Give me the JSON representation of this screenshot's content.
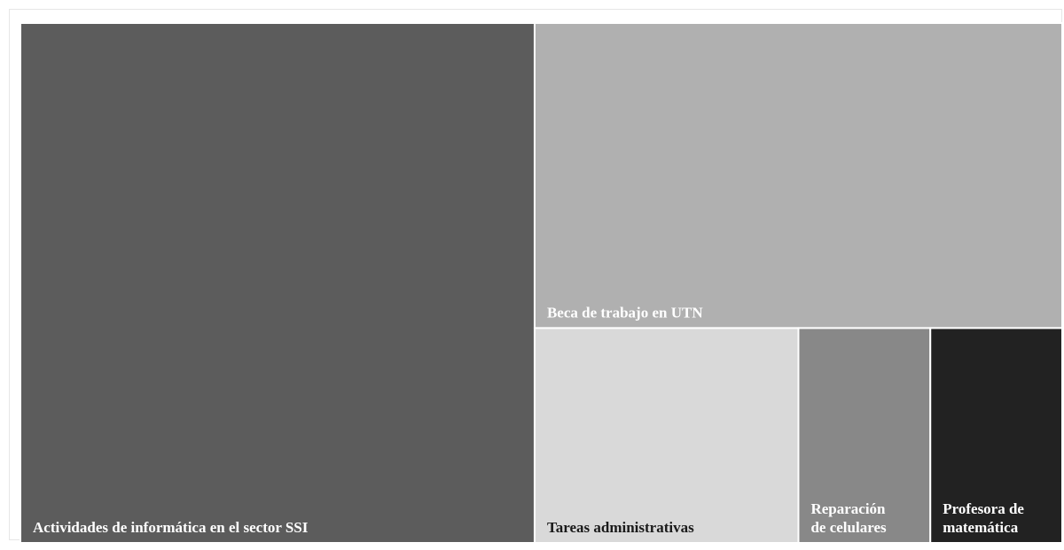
{
  "chart_data": {
    "type": "treemap",
    "title": "",
    "items": [
      {
        "label": "Actividades de informática en el sector SSI",
        "lines": [
          "Actividades de informática en el sector SSI"
        ],
        "value": 50.0,
        "color": "#5c5c5c",
        "text_color": "#ffffff"
      },
      {
        "label": "Beca de trabajo en UTN",
        "lines": [
          "Beca de trabajo en UTN"
        ],
        "value": 30.1,
        "color": "#b0b0b0",
        "text_color": "#ffffff"
      },
      {
        "label": "Tareas administrativas",
        "lines": [
          "Tareas administrativas"
        ],
        "value": 10.6,
        "color": "#d9d9d9",
        "text_color": "#1a1a1a"
      },
      {
        "label": "Reparación de celulares",
        "lines": [
          "Reparación",
          "de celulares"
        ],
        "value": 5.3,
        "color": "#888888",
        "text_color": "#ffffff"
      },
      {
        "label": "Profesora de matemática",
        "lines": [
          "Profesora de",
          "matemática"
        ],
        "value": 5.3,
        "color": "#222222",
        "text_color": "#ffffff"
      }
    ]
  }
}
